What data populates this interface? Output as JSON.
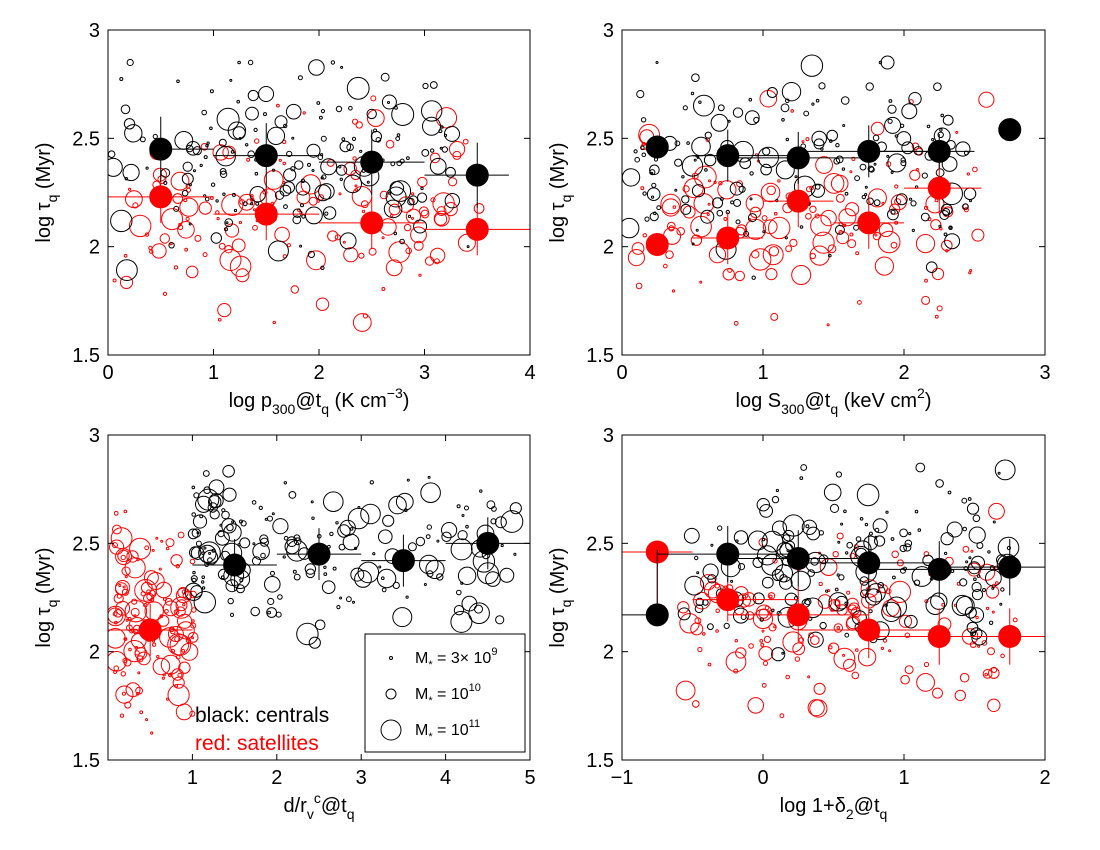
{
  "colors": {
    "central": "#000000",
    "satellite": "#ff0000",
    "frame": "#000000"
  },
  "legend": {
    "entries": [
      {
        "base": "M",
        "sub": "*",
        "mid": " = 3× 10",
        "sup": "9",
        "marker_mass": 0.48
      },
      {
        "base": "M",
        "sub": "*",
        "mid": " = 10",
        "sup": "10",
        "marker_mass": 1.0
      },
      {
        "base": "M",
        "sub": "*",
        "mid": " = 10",
        "sup": "11",
        "marker_mass": 2.0
      }
    ],
    "placement": "bottom-right of bottom-left panel"
  },
  "annotations": {
    "centrals": "black: centrals",
    "satellites": "red: satellites"
  },
  "chart_data": [
    {
      "type": "scatter",
      "panel": "top-left",
      "xlabel": {
        "parts": [
          {
            "t": "log p"
          },
          {
            "t": "300",
            "s": "sub"
          },
          {
            "t": "@t"
          },
          {
            "t": "q",
            "s": "sub"
          },
          {
            "t": " (K cm"
          },
          {
            "t": "−3",
            "s": "sup"
          },
          {
            "t": ")"
          }
        ]
      },
      "ylabel": {
        "parts": [
          {
            "t": "log τ"
          },
          {
            "t": "q",
            "s": "sub"
          },
          {
            "t": " (Myr)"
          }
        ]
      },
      "xlim": [
        0,
        4
      ],
      "ylim": [
        1.5,
        3
      ],
      "xticks": [
        0,
        1,
        2,
        3,
        4
      ],
      "yticks": [
        1.5,
        2,
        2.5,
        3
      ],
      "xtick_labels": [
        "0",
        "1",
        "2",
        "3",
        "4"
      ],
      "ytick_labels": [
        "1.5",
        "2",
        "2.5",
        "3"
      ],
      "grid": false,
      "scatter_x_range": [
        0,
        3.6
      ],
      "scatter_sat_y": [
        1.65,
        2.75
      ],
      "scatter_cen_y": [
        1.75,
        2.85
      ],
      "binned": {
        "centrals": [
          {
            "x": 0.5,
            "y": 2.45,
            "xerr": [
              0.0,
              0.5
            ],
            "yerr": [
              0.15,
              0.15
            ]
          },
          {
            "x": 1.5,
            "y": 2.42,
            "xerr": [
              0.5,
              0.5
            ],
            "yerr": [
              0.15,
              0.15
            ]
          },
          {
            "x": 2.5,
            "y": 2.39,
            "xerr": [
              0.5,
              0.5
            ],
            "yerr": [
              0.15,
              0.15
            ]
          },
          {
            "x": 3.5,
            "y": 2.33,
            "xerr": [
              0.5,
              0.3
            ],
            "yerr": [
              0.15,
              0.15
            ]
          }
        ],
        "satellites": [
          {
            "x": 0.5,
            "y": 2.23,
            "xerr": [
              0.5,
              0.5
            ],
            "yerr": [
              0.12,
              0.12
            ]
          },
          {
            "x": 1.5,
            "y": 2.15,
            "xerr": [
              0.5,
              0.5
            ],
            "yerr": [
              0.12,
              0.12
            ]
          },
          {
            "x": 2.5,
            "y": 2.11,
            "xerr": [
              0.5,
              0.5
            ],
            "yerr": [
              0.12,
              0.12
            ]
          },
          {
            "x": 3.5,
            "y": 2.08,
            "xerr": [
              0.5,
              0.5
            ],
            "yerr": [
              0.12,
              0.12
            ]
          }
        ]
      }
    },
    {
      "type": "scatter",
      "panel": "top-right",
      "xlabel": {
        "parts": [
          {
            "t": "log S"
          },
          {
            "t": "300",
            "s": "sub"
          },
          {
            "t": "@t"
          },
          {
            "t": "q",
            "s": "sub"
          },
          {
            "t": " (keV cm"
          },
          {
            "t": "2",
            "s": "sup"
          },
          {
            "t": ")"
          }
        ]
      },
      "ylabel": {
        "parts": [
          {
            "t": "log τ"
          },
          {
            "t": "q",
            "s": "sub"
          },
          {
            "t": " (Myr)"
          }
        ]
      },
      "xlim": [
        0,
        3
      ],
      "ylim": [
        1.5,
        3
      ],
      "xticks": [
        0,
        1,
        2,
        3
      ],
      "yticks": [
        1.5,
        2,
        2.5,
        3
      ],
      "xtick_labels": [
        "0",
        "1",
        "2",
        "3"
      ],
      "ytick_labels": [
        "1.5",
        "2",
        "2.5",
        "3"
      ],
      "grid": false,
      "scatter_x_range": [
        0.05,
        2.65
      ],
      "scatter_sat_y": [
        1.6,
        2.8
      ],
      "scatter_cen_y": [
        1.7,
        2.85
      ],
      "binned": {
        "centrals": [
          {
            "x": 0.25,
            "y": 2.46,
            "xerr": [
              0.0,
              0.0
            ],
            "yerr": [
              0.05,
              0.05
            ]
          },
          {
            "x": 0.75,
            "y": 2.42,
            "xerr": [
              0.25,
              0.5
            ],
            "yerr": [
              0.12,
              0.12
            ]
          },
          {
            "x": 1.25,
            "y": 2.41,
            "xerr": [
              0.5,
              0.5
            ],
            "yerr": [
              0.12,
              0.12
            ]
          },
          {
            "x": 1.75,
            "y": 2.44,
            "xerr": [
              0.5,
              0.5
            ],
            "yerr": [
              0.12,
              0.12
            ]
          },
          {
            "x": 2.25,
            "y": 2.44,
            "xerr": [
              0.5,
              0.25
            ],
            "yerr": [
              0.08,
              0.08
            ]
          },
          {
            "x": 2.75,
            "y": 2.54,
            "xerr": [
              0.0,
              0.0
            ],
            "yerr": [
              0.0,
              0.0
            ]
          }
        ],
        "satellites": [
          {
            "x": 0.25,
            "y": 2.01,
            "xerr": [
              0.0,
              0.0
            ],
            "yerr": [
              0.0,
              0.0
            ]
          },
          {
            "x": 0.75,
            "y": 2.04,
            "xerr": [
              0.25,
              0.25
            ],
            "yerr": [
              0.12,
              0.12
            ]
          },
          {
            "x": 1.25,
            "y": 2.21,
            "xerr": [
              0.25,
              0.25
            ],
            "yerr": [
              0.12,
              0.12
            ]
          },
          {
            "x": 1.75,
            "y": 2.11,
            "xerr": [
              0.25,
              0.25
            ],
            "yerr": [
              0.12,
              0.12
            ]
          },
          {
            "x": 2.25,
            "y": 2.27,
            "xerr": [
              0.25,
              0.3
            ],
            "yerr": [
              0.12,
              0.12
            ]
          }
        ]
      }
    },
    {
      "type": "scatter",
      "panel": "bottom-left",
      "xlabel": {
        "parts": [
          {
            "t": "d/r"
          },
          {
            "t": "v",
            "s": "sub"
          },
          {
            "t": "c",
            "s": "sup"
          },
          {
            "t": "@t"
          },
          {
            "t": "q",
            "s": "sub"
          }
        ]
      },
      "ylabel": {
        "parts": [
          {
            "t": "log τ"
          },
          {
            "t": "q",
            "s": "sub"
          },
          {
            "t": " (Myr)"
          }
        ]
      },
      "xlim": [
        0,
        5
      ],
      "ylim": [
        1.5,
        3
      ],
      "xticks": [
        1,
        2,
        3,
        4,
        5
      ],
      "yticks": [
        1.5,
        2,
        2.5,
        3
      ],
      "xtick_labels": [
        "1",
        "2",
        "3",
        "4",
        "5"
      ],
      "ytick_labels": [
        "1.5",
        "2",
        "2.5",
        "3"
      ],
      "grid": false,
      "scatter_x_range": [
        0.05,
        4.95
      ],
      "scatter_sat_y": [
        1.55,
        2.8
      ],
      "scatter_cen_y": [
        1.9,
        2.85
      ],
      "binned": {
        "centrals": [
          {
            "x": 1.5,
            "y": 2.4,
            "xerr": [
              0.5,
              0.5
            ],
            "yerr": [
              0.12,
              0.12
            ]
          },
          {
            "x": 2.5,
            "y": 2.45,
            "xerr": [
              0.5,
              0.5
            ],
            "yerr": [
              0.12,
              0.12
            ]
          },
          {
            "x": 3.5,
            "y": 2.42,
            "xerr": [
              0.5,
              0.5
            ],
            "yerr": [
              0.12,
              0.12
            ]
          },
          {
            "x": 4.5,
            "y": 2.5,
            "xerr": [
              0.5,
              0.5
            ],
            "yerr": [
              0.12,
              0.12
            ]
          }
        ],
        "satellites": [
          {
            "x": 0.5,
            "y": 2.1,
            "xerr": [
              0.5,
              0.5
            ],
            "yerr": [
              0.12,
              0.12
            ]
          }
        ]
      }
    },
    {
      "type": "scatter",
      "panel": "bottom-right",
      "xlabel": {
        "parts": [
          {
            "t": "log 1+δ"
          },
          {
            "t": "2",
            "s": "sub"
          },
          {
            "t": "@t"
          },
          {
            "t": "q",
            "s": "sub"
          }
        ]
      },
      "ylabel": {
        "parts": [
          {
            "t": "log τ"
          },
          {
            "t": "q",
            "s": "sub"
          },
          {
            "t": " (Myr)"
          }
        ]
      },
      "xlim": [
        -1,
        2
      ],
      "ylim": [
        1.5,
        3
      ],
      "xticks": [
        -1,
        0,
        1,
        2
      ],
      "yticks": [
        1.5,
        2,
        2.5,
        3
      ],
      "xtick_labels": [
        "−1",
        "0",
        "1",
        "2"
      ],
      "ytick_labels": [
        "1.5",
        "2",
        "2.5",
        "3"
      ],
      "grid": false,
      "scatter_x_range": [
        -0.65,
        1.8
      ],
      "scatter_sat_y": [
        1.65,
        2.75
      ],
      "scatter_cen_y": [
        1.8,
        2.85
      ],
      "binned": {
        "centrals": [
          {
            "x": -0.75,
            "y": 2.17,
            "xerr": [
              0.25,
              0.0
            ],
            "yerr": [
              0.0,
              0.3
            ]
          },
          {
            "x": -0.25,
            "y": 2.45,
            "xerr": [
              0.5,
              0.5
            ],
            "yerr": [
              0.13,
              0.13
            ]
          },
          {
            "x": 0.25,
            "y": 2.43,
            "xerr": [
              0.5,
              0.5
            ],
            "yerr": [
              0.13,
              0.13
            ]
          },
          {
            "x": 0.75,
            "y": 2.41,
            "xerr": [
              0.5,
              0.5
            ],
            "yerr": [
              0.13,
              0.13
            ]
          },
          {
            "x": 1.25,
            "y": 2.38,
            "xerr": [
              0.5,
              0.5
            ],
            "yerr": [
              0.13,
              0.13
            ]
          },
          {
            "x": 1.75,
            "y": 2.39,
            "xerr": [
              0.5,
              0.25
            ],
            "yerr": [
              0.13,
              0.13
            ]
          }
        ],
        "satellites": [
          {
            "x": -0.75,
            "y": 2.46,
            "xerr": [
              0.25,
              0.25
            ],
            "yerr": [
              0.3,
              0.0
            ]
          },
          {
            "x": -0.25,
            "y": 2.24,
            "xerr": [
              0.25,
              0.5
            ],
            "yerr": [
              0.1,
              0.1
            ]
          },
          {
            "x": 0.25,
            "y": 2.17,
            "xerr": [
              0.5,
              0.5
            ],
            "yerr": [
              0.13,
              0.13
            ]
          },
          {
            "x": 0.75,
            "y": 2.1,
            "xerr": [
              0.5,
              0.5
            ],
            "yerr": [
              0.13,
              0.13
            ]
          },
          {
            "x": 1.25,
            "y": 2.07,
            "xerr": [
              0.5,
              0.5
            ],
            "yerr": [
              0.13,
              0.13
            ]
          },
          {
            "x": 1.75,
            "y": 2.07,
            "xerr": [
              0.5,
              0.5
            ],
            "yerr": [
              0.13,
              0.13
            ]
          }
        ]
      }
    }
  ]
}
